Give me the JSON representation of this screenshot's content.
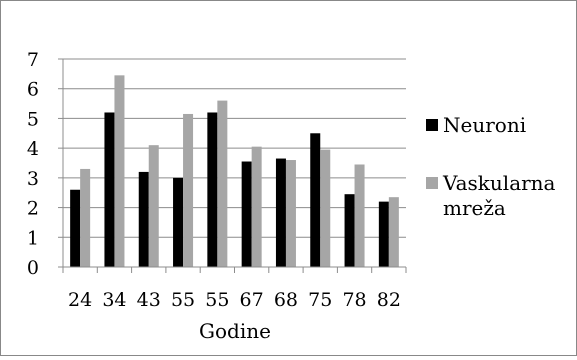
{
  "chart_data": {
    "type": "bar",
    "categories": [
      "24",
      "34",
      "43",
      "55",
      "55",
      "67",
      "68",
      "75",
      "78",
      "82"
    ],
    "series": [
      {
        "name": "Neuroni",
        "values": [
          2.6,
          5.2,
          3.2,
          3.0,
          5.2,
          3.55,
          3.65,
          4.5,
          2.45,
          2.2
        ],
        "color": "#000000"
      },
      {
        "name": "Vaskularna mreža",
        "values": [
          3.3,
          6.45,
          4.1,
          5.15,
          5.6,
          4.05,
          3.6,
          3.95,
          3.45,
          2.35
        ],
        "color": "#a6a6a6"
      }
    ],
    "title": "",
    "xlabel": "Godine",
    "ylabel": "",
    "ylim": [
      0,
      7
    ],
    "yticks": [
      "0",
      "1",
      "2",
      "3",
      "4",
      "5",
      "6",
      "7"
    ],
    "grid": true,
    "legend_position": "right"
  }
}
